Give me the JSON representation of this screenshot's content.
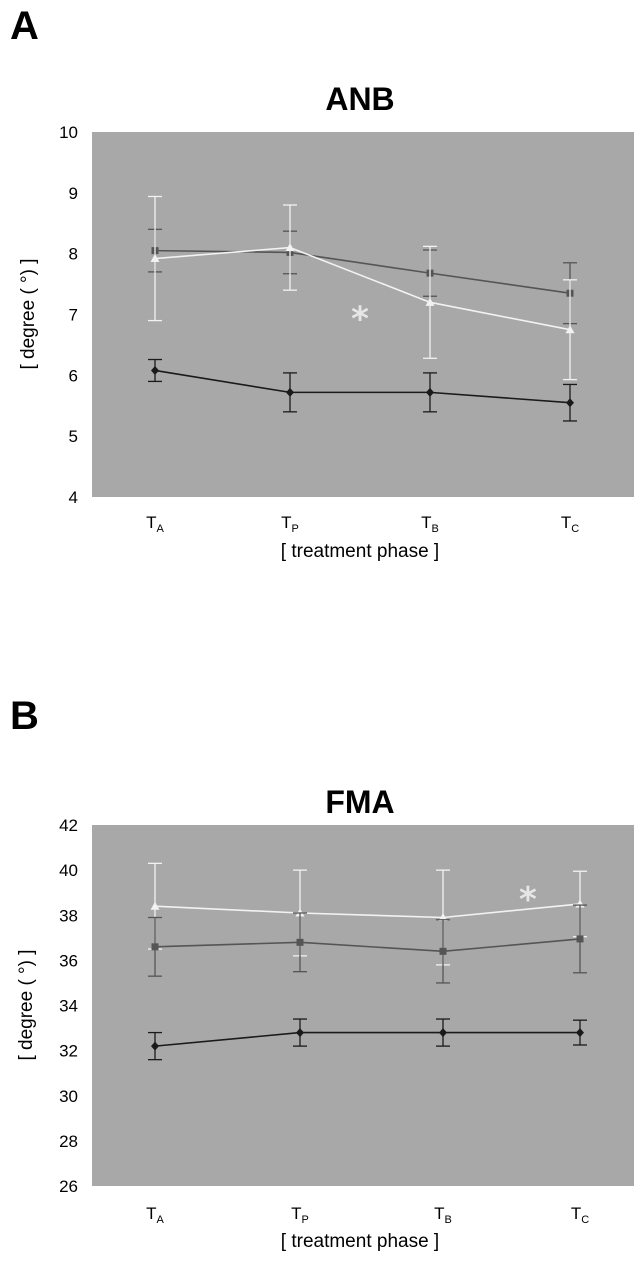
{
  "colors": {
    "plot_bg": "#a8a8a8",
    "series_black": "#1a1a1a",
    "series_dark": "#555555",
    "series_white": "#f2f2f2",
    "star": "#e6e6e6"
  },
  "chart_data": [
    {
      "panel": "A",
      "type": "line",
      "title": "ANB",
      "ylabel": "[ degree ( °) ]",
      "xlabel": "[ treatment phase ]",
      "ylim": [
        4,
        10
      ],
      "yticks": [
        "4",
        "5",
        "6",
        "7",
        "8",
        "9",
        "10"
      ],
      "categories": [
        {
          "main": "T",
          "sub": "A"
        },
        {
          "main": "T",
          "sub": "P"
        },
        {
          "main": "T",
          "sub": "B"
        },
        {
          "main": "T",
          "sub": "C"
        }
      ],
      "annotation": "*",
      "annotation_at": [
        1.5,
        6.97
      ],
      "series": [
        {
          "marker": "square",
          "color": "#555555",
          "values": [
            8.05,
            8.02,
            7.68,
            7.35
          ],
          "errors": [
            0.35,
            0.35,
            0.38,
            0.5
          ]
        },
        {
          "marker": "triangle",
          "color": "#f2f2f2",
          "values": [
            7.92,
            8.1,
            7.2,
            6.75
          ],
          "errors": [
            1.02,
            0.7,
            0.92,
            0.82
          ]
        },
        {
          "marker": "diamond",
          "color": "#1a1a1a",
          "values": [
            6.08,
            5.72,
            5.72,
            5.55
          ],
          "errors": [
            0.18,
            0.32,
            0.32,
            0.3
          ]
        }
      ]
    },
    {
      "panel": "B",
      "type": "line",
      "title": "FMA",
      "ylabel": "[ degree ( °) ]",
      "xlabel": "[ treatment phase ]",
      "ylim": [
        26,
        42
      ],
      "yticks": [
        "26",
        "28",
        "30",
        "32",
        "34",
        "36",
        "38",
        "40",
        "42"
      ],
      "categories": [
        {
          "main": "T",
          "sub": "A"
        },
        {
          "main": "T",
          "sub": "P"
        },
        {
          "main": "T",
          "sub": "B"
        },
        {
          "main": "T",
          "sub": "C"
        }
      ],
      "annotation": "*",
      "annotation_at": [
        2.62,
        38.8
      ],
      "series": [
        {
          "marker": "triangle",
          "color": "#f2f2f2",
          "values": [
            38.4,
            38.1,
            37.9,
            38.5
          ],
          "errors": [
            1.9,
            1.9,
            2.1,
            1.45
          ]
        },
        {
          "marker": "square",
          "color": "#555555",
          "values": [
            36.6,
            36.8,
            36.4,
            36.95
          ],
          "errors": [
            1.3,
            1.3,
            1.4,
            1.5
          ]
        },
        {
          "marker": "diamond",
          "color": "#1a1a1a",
          "values": [
            32.2,
            32.8,
            32.8,
            32.8
          ],
          "errors": [
            0.6,
            0.6,
            0.6,
            0.55
          ]
        }
      ]
    }
  ]
}
